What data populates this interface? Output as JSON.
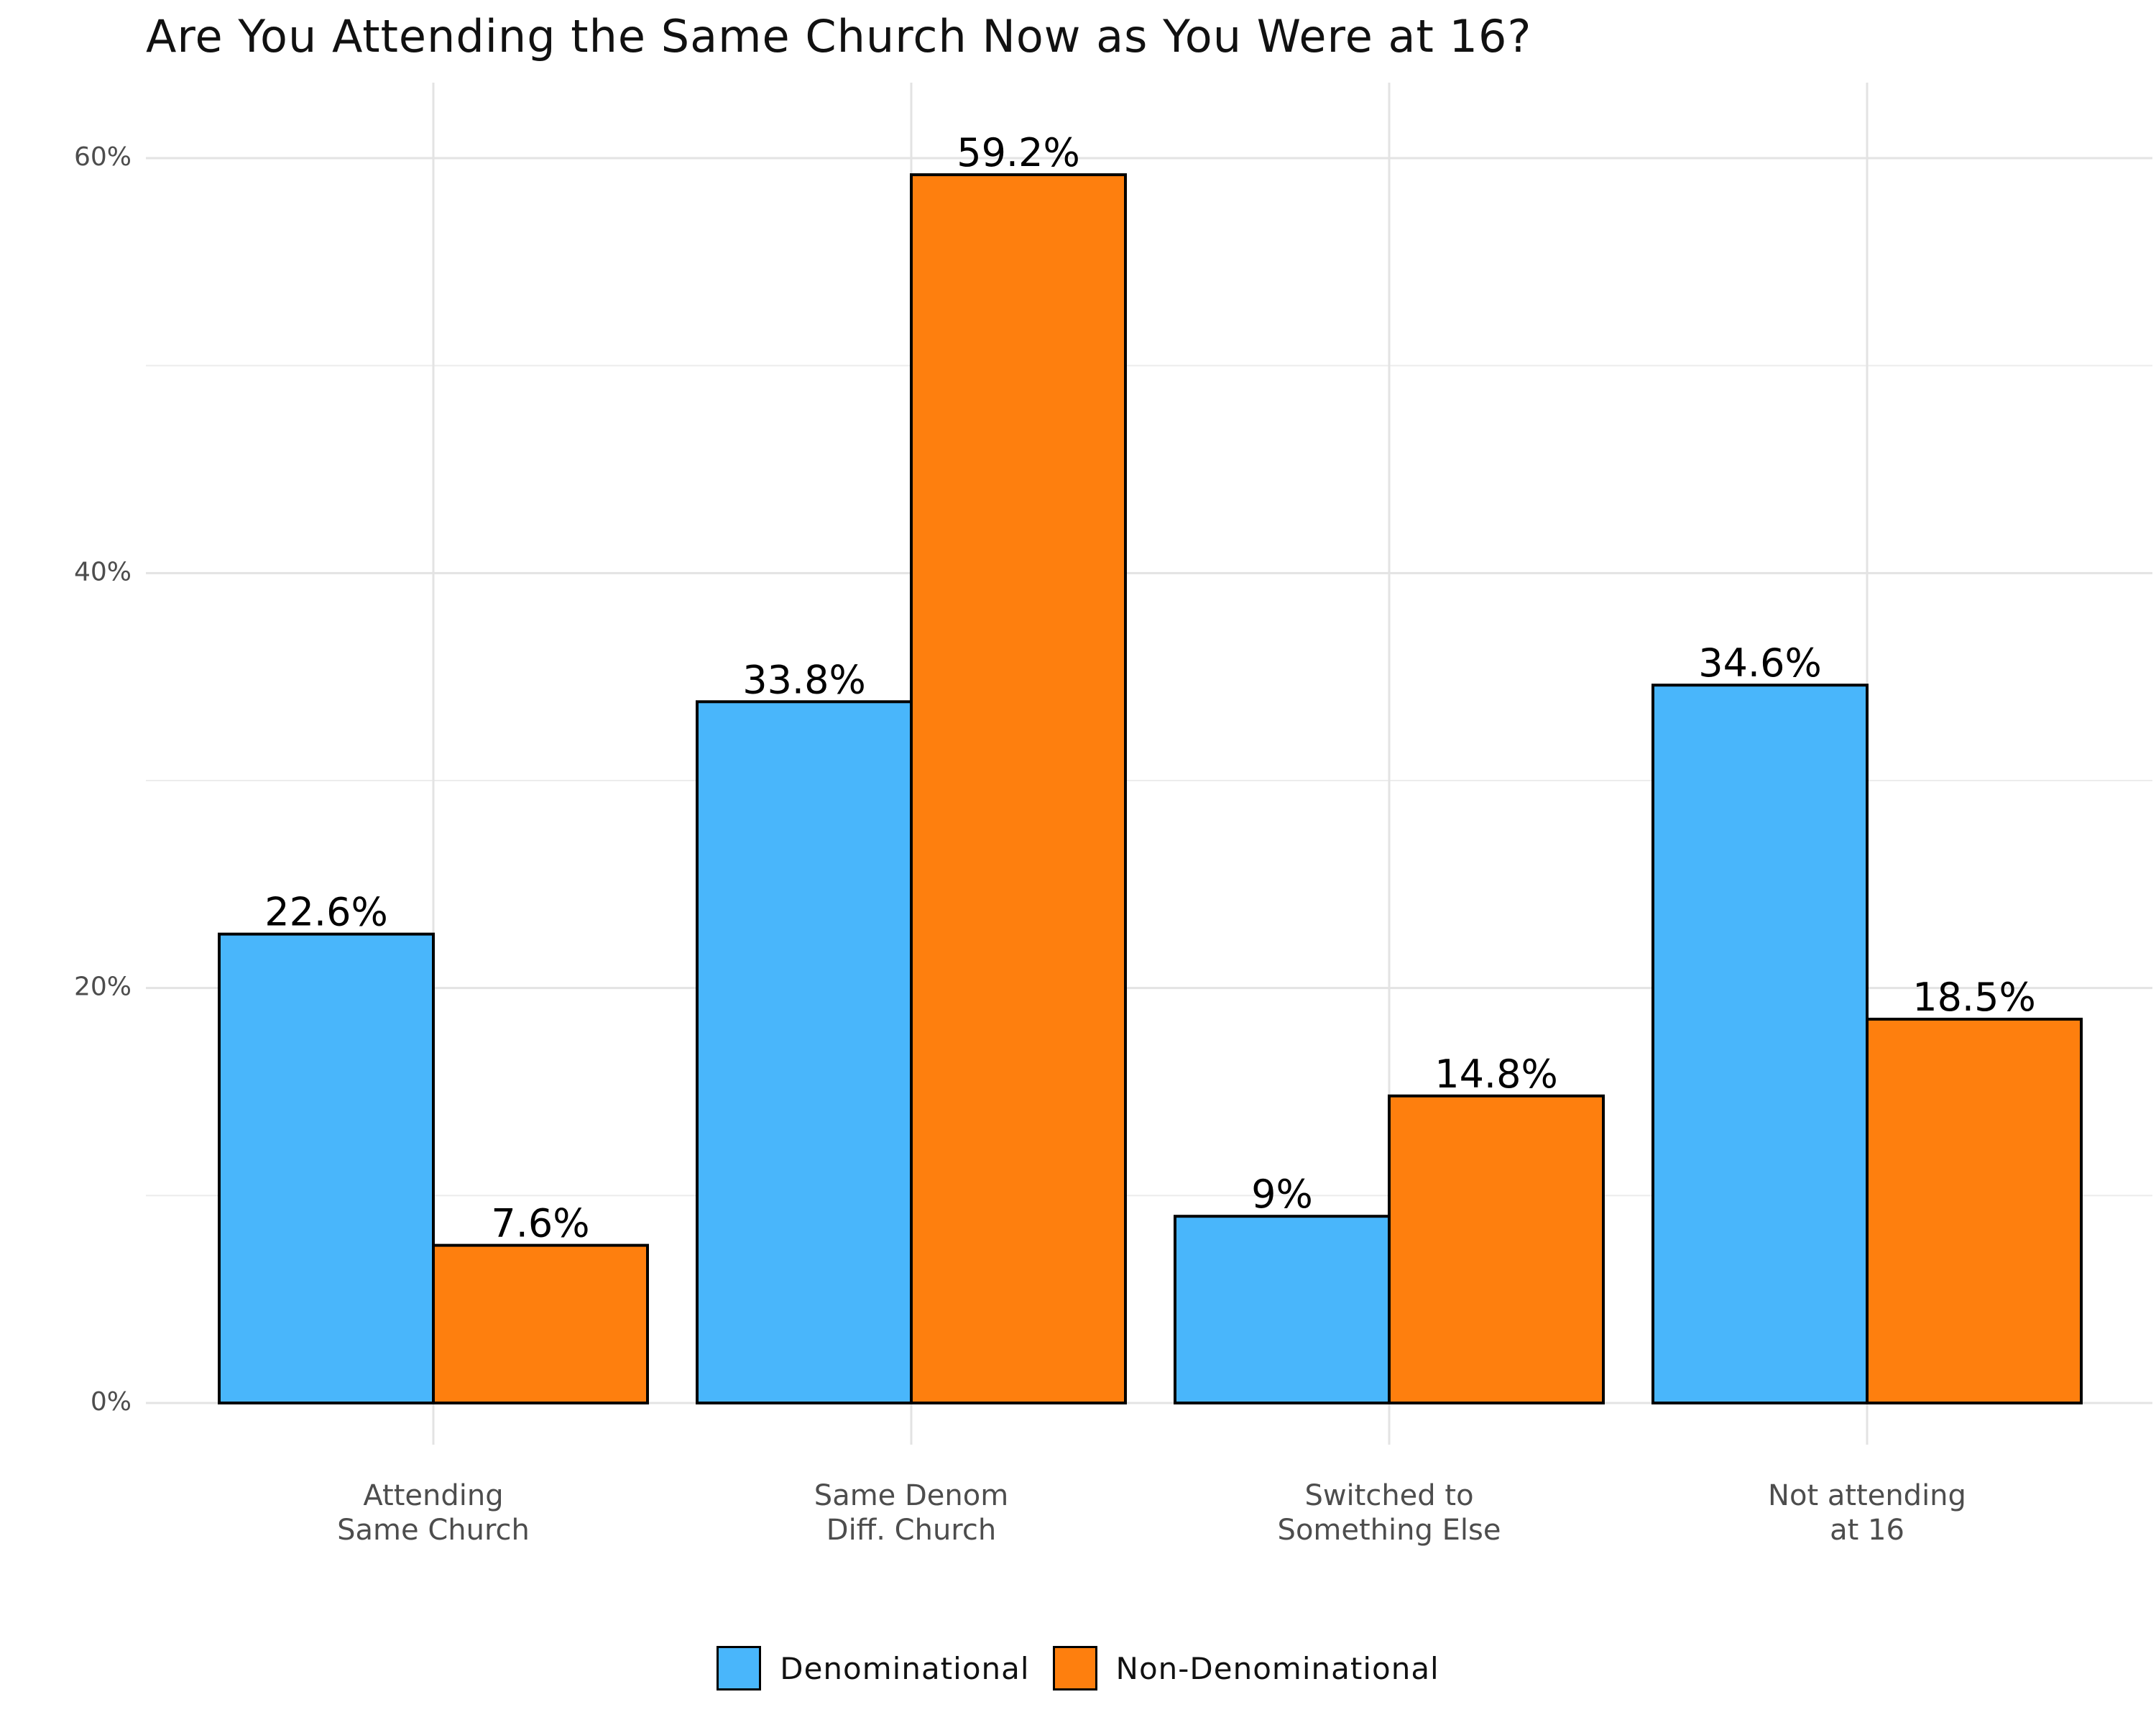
{
  "chart_data": {
    "type": "bar",
    "title": "Are You Attending the Same Church Now as You Were at 16?",
    "xlabel": "",
    "ylabel": "",
    "ylim": [
      -3,
      63
    ],
    "y_ticks": [
      0,
      20,
      40,
      60
    ],
    "y_tick_labels": [
      "0%",
      "20%",
      "40%",
      "60%"
    ],
    "y_minor_ticks": [
      10,
      30,
      50
    ],
    "grid": true,
    "legend_position": "bottom",
    "categories": [
      "Attending\nSame Church",
      "Same Denom\nDiff. Church",
      "Switched to\nSomething Else",
      "Not attending\nat 16"
    ],
    "series": [
      {
        "name": "Denominational",
        "color": "#49b6fb",
        "values": [
          22.6,
          33.8,
          9,
          34.6
        ],
        "labels": [
          "22.6%",
          "33.8%",
          "9%",
          "34.6%"
        ]
      },
      {
        "name": "Non-Denominational",
        "color": "#fe7f0e",
        "values": [
          7.6,
          59.2,
          14.8,
          18.5
        ],
        "labels": [
          "7.6%",
          "59.2%",
          "14.8%",
          "18.5%"
        ]
      }
    ]
  }
}
